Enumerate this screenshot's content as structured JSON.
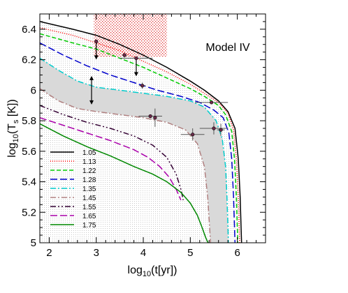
{
  "chart_data": {
    "type": "line",
    "annotation": "Model IV",
    "xlabel": "log10(t[yr])",
    "ylabel": "log10(Ts [K])",
    "xlim": [
      1.8,
      6.6
    ],
    "ylim": [
      5.0,
      6.5
    ],
    "xticks": [
      2,
      3,
      4,
      5,
      6
    ],
    "yticks": [
      5,
      5.2,
      5.4,
      5.6,
      5.8,
      6,
      6.2,
      6.4
    ],
    "legend_position": "bottom-left",
    "series": [
      {
        "name": "1.05",
        "color": "#000000",
        "dash": "solid",
        "x": [
          1.8,
          2.5,
          3.0,
          3.5,
          4.0,
          4.5,
          5.0,
          5.3,
          5.6,
          5.8,
          5.95,
          6.02,
          6.06,
          6.08,
          6.09
        ],
        "y": [
          6.45,
          6.4,
          6.36,
          6.3,
          6.23,
          6.15,
          6.06,
          6.0,
          5.93,
          5.86,
          5.75,
          5.55,
          5.3,
          5.1,
          5.0
        ]
      },
      {
        "name": "1.13",
        "color": "#ff0000",
        "dash": "1,2",
        "x": [
          1.8,
          2.5,
          3.0,
          3.5,
          4.0,
          4.5,
          5.0,
          5.3,
          5.6,
          5.8,
          5.92,
          5.98,
          6.02,
          6.04,
          6.05
        ],
        "y": [
          6.41,
          6.36,
          6.31,
          6.26,
          6.19,
          6.12,
          6.04,
          5.98,
          5.92,
          5.85,
          5.74,
          5.55,
          5.3,
          5.1,
          5.0
        ]
      },
      {
        "name": "1.22",
        "color": "#00cc00",
        "dash": "6,3",
        "x": [
          1.8,
          2.5,
          3.0,
          3.5,
          4.0,
          4.5,
          5.0,
          5.3,
          5.6,
          5.75,
          5.88,
          5.94,
          5.98,
          6.0,
          6.01
        ],
        "y": [
          6.37,
          6.31,
          6.27,
          6.21,
          6.15,
          6.08,
          6.01,
          5.96,
          5.9,
          5.84,
          5.73,
          5.55,
          5.3,
          5.1,
          5.0
        ]
      },
      {
        "name": "1.28",
        "color": "#0000cc",
        "dash": "10,4",
        "x": [
          1.8,
          2.3,
          2.8,
          3.3,
          3.8,
          4.3,
          4.8,
          5.2,
          5.5,
          5.7,
          5.82,
          5.88,
          5.92,
          5.94,
          5.95
        ],
        "y": [
          6.31,
          6.23,
          6.16,
          6.1,
          6.05,
          6.0,
          5.96,
          5.92,
          5.87,
          5.82,
          5.72,
          5.55,
          5.3,
          5.1,
          5.0
        ]
      },
      {
        "name": "1.35",
        "color": "#00cccc",
        "dash": "8,3,2,3",
        "x": [
          1.8,
          2.2,
          2.6,
          3.0,
          3.5,
          4.0,
          4.5,
          5.0,
          5.3,
          5.55,
          5.68,
          5.75,
          5.78,
          5.8,
          5.81
        ],
        "y": [
          6.21,
          6.13,
          6.06,
          6.02,
          6.0,
          5.98,
          5.96,
          5.93,
          5.89,
          5.8,
          5.68,
          5.5,
          5.3,
          5.1,
          5.0
        ]
      },
      {
        "name": "1.45",
        "color": "#b08080",
        "dash": "8,3,2,3",
        "x": [
          1.8,
          2.2,
          2.6,
          3.0,
          3.5,
          4.0,
          4.5,
          4.9,
          5.15,
          5.3,
          5.37,
          5.4,
          5.42,
          5.43
        ],
        "y": [
          6.01,
          5.93,
          5.88,
          5.86,
          5.84,
          5.82,
          5.79,
          5.74,
          5.65,
          5.5,
          5.3,
          5.15,
          5.05,
          5.0
        ]
      },
      {
        "name": "1.55",
        "color": "#330033",
        "dash": "8,3,2,3,2,3",
        "x": [
          1.8,
          2.3,
          2.8,
          3.3,
          3.8,
          4.2,
          4.5,
          4.7,
          4.8,
          4.85
        ],
        "y": [
          5.9,
          5.84,
          5.79,
          5.75,
          5.7,
          5.64,
          5.56,
          5.45,
          5.35,
          5.28
        ]
      },
      {
        "name": "1.65",
        "color": "#aa00aa",
        "dash": "10,4",
        "x": [
          1.8,
          2.3,
          2.8,
          3.3,
          3.8,
          4.1,
          4.35,
          4.55,
          4.7,
          4.8
        ],
        "y": [
          5.82,
          5.77,
          5.72,
          5.67,
          5.61,
          5.56,
          5.5,
          5.43,
          5.35,
          5.28
        ]
      },
      {
        "name": "1.75",
        "color": "#008800",
        "dash": "solid",
        "x": [
          1.8,
          2.3,
          2.8,
          3.3,
          3.8,
          4.2,
          4.5,
          4.8,
          5.0,
          5.15,
          5.25,
          5.32,
          5.36,
          5.38
        ],
        "y": [
          5.78,
          5.7,
          5.63,
          5.57,
          5.5,
          5.45,
          5.4,
          5.33,
          5.26,
          5.18,
          5.1,
          5.04,
          5.01,
          5.0
        ]
      }
    ],
    "band": {
      "upper_x": [
        1.8,
        2.2,
        2.6,
        3.0,
        3.5,
        4.0,
        4.5,
        5.0,
        5.3,
        5.55,
        5.68,
        5.75,
        5.78,
        5.8,
        5.81
      ],
      "upper_y": [
        6.21,
        6.13,
        6.06,
        6.02,
        6.0,
        5.98,
        5.96,
        5.93,
        5.89,
        5.8,
        5.68,
        5.5,
        5.3,
        5.1,
        5.0
      ],
      "lower_x": [
        1.8,
        2.2,
        2.6,
        3.0,
        3.5,
        4.0,
        4.5,
        4.9,
        5.15,
        5.3,
        5.37,
        5.4,
        5.42,
        5.43
      ],
      "lower_y": [
        6.01,
        5.93,
        5.88,
        5.86,
        5.84,
        5.82,
        5.79,
        5.74,
        5.65,
        5.5,
        5.3,
        5.15,
        5.05,
        5.0
      ]
    },
    "points": [
      {
        "x": 3.0,
        "y": 6.32,
        "xerr": 0.0,
        "yerr": 0.0,
        "kind": "upper-limit"
      },
      {
        "x": 3.6,
        "y": 6.23,
        "xerr": 0.05,
        "yerr": 0.015
      },
      {
        "x": 3.85,
        "y": 6.21,
        "xerr": 0.35,
        "yerr": 0.0,
        "kind": "upper-limit"
      },
      {
        "x": 3.98,
        "y": 6.03,
        "xerr": 0.07,
        "yerr": 0.02
      },
      {
        "x": 2.9,
        "y": 6.03,
        "xerr": 0.0,
        "yerr": 0.0,
        "kind": "range",
        "ylow": 5.92,
        "yhigh": 6.08
      },
      {
        "x": 4.15,
        "y": 5.83,
        "xerr": 0.25,
        "yerr": 0.0
      },
      {
        "x": 4.25,
        "y": 5.82,
        "xerr": 0.0,
        "yerr": 0.06
      },
      {
        "x": 5.05,
        "y": 5.71,
        "xerr": 0.25,
        "yerr": 0.04
      },
      {
        "x": 5.5,
        "y": 5.75,
        "xerr": 0.3,
        "yerr": 0.04
      },
      {
        "x": 5.65,
        "y": 5.74,
        "xerr": 0.08,
        "yerr": 0.04
      },
      {
        "x": 5.45,
        "y": 5.92,
        "xerr": 0.35,
        "yerr": 0.0
      }
    ],
    "hatched_region": {
      "x": [
        2.95,
        4.5
      ],
      "y": [
        6.22,
        6.5
      ],
      "color": "#ff3333"
    }
  }
}
